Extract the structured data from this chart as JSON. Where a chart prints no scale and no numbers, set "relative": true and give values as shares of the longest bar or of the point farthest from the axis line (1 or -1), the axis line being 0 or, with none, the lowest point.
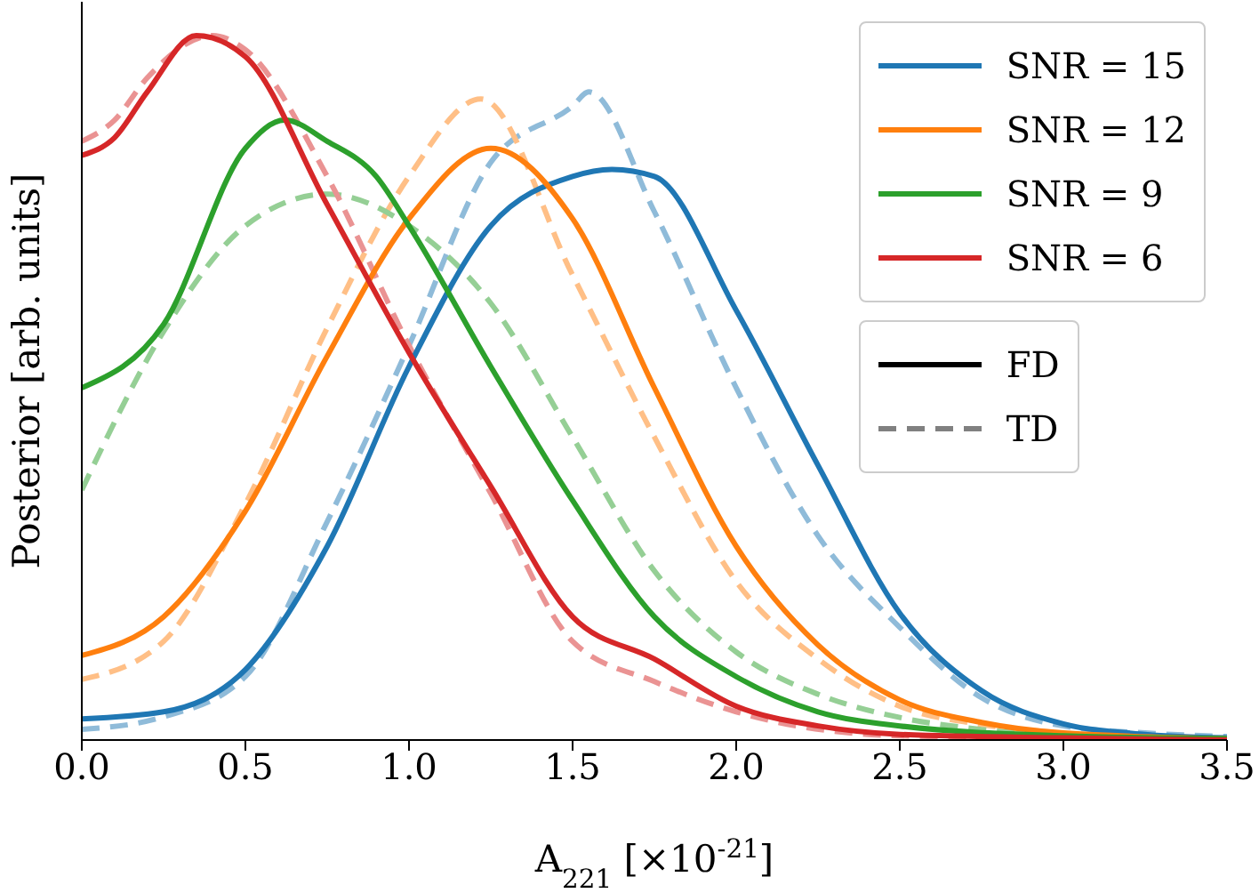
{
  "chart_data": {
    "type": "line",
    "xlabel": "A$_{221}$ [×10$^{-21}$]",
    "ylabel": "Posterior [arb. units]",
    "relative": true,
    "xlim": [
      0,
      3.5
    ],
    "xticks": [
      {
        "value": 0,
        "label": "0.0"
      },
      {
        "value": 0.5,
        "label": "0.5"
      },
      {
        "value": 1,
        "label": "1.0"
      },
      {
        "value": 1.5,
        "label": "1.5"
      },
      {
        "value": 2,
        "label": "2.0"
      },
      {
        "value": 2.5,
        "label": "2.5"
      },
      {
        "value": 3,
        "label": "3.0"
      },
      {
        "value": 3.5,
        "label": "3.5"
      }
    ],
    "legend": "top right",
    "grid": false,
    "marker": "none",
    "annotations": [
      "FD",
      "TD"
    ],
    "series": [
      {
        "name": "SNR = 15",
        "color": "#1f77b4",
        "line_style": "solid",
        "x": [
          0,
          0.25,
          0.5,
          0.75,
          1,
          1.25,
          1.5,
          1.62,
          1.75,
          2,
          2.25,
          2.5,
          2.75,
          3,
          3.25,
          3.5
        ],
        "values": [
          0.03,
          0.04,
          0.1,
          0.275,
          0.53,
          0.73,
          0.8,
          0.81,
          0.8,
          0.61,
          0.39,
          0.18,
          0.07,
          0.023,
          0.008,
          0.003
        ]
      },
      {
        "name": "SNR = 12",
        "color": "#ff7f0e",
        "line_style": "solid",
        "x": [
          0,
          0.25,
          0.5,
          0.75,
          1,
          1.25,
          1.5,
          1.75,
          2,
          2.25,
          2.5,
          2.75,
          3,
          3.5
        ],
        "values": [
          0.12,
          0.175,
          0.325,
          0.545,
          0.74,
          0.84,
          0.74,
          0.5,
          0.275,
          0.135,
          0.057,
          0.025,
          0.01,
          0.002
        ]
      },
      {
        "name": "SNR = 9",
        "color": "#2ca02c",
        "line_style": "solid",
        "x": [
          0,
          0.25,
          0.5,
          0.62,
          0.75,
          0.9,
          1,
          1.25,
          1.5,
          1.75,
          2,
          2.25,
          2.5,
          3,
          3.5
        ],
        "values": [
          0.5,
          0.59,
          0.84,
          0.88,
          0.85,
          0.8,
          0.73,
          0.53,
          0.34,
          0.175,
          0.09,
          0.04,
          0.02,
          0.006,
          0.002
        ]
      },
      {
        "name": "SNR = 6",
        "color": "#d62728",
        "line_style": "solid",
        "x": [
          0,
          0.1,
          0.2,
          0.35,
          0.5,
          0.75,
          1,
          1.25,
          1.5,
          1.75,
          2,
          2.25,
          2.5,
          3,
          3.5
        ],
        "values": [
          0.83,
          0.855,
          0.92,
          1,
          0.97,
          0.76,
          0.55,
          0.36,
          0.175,
          0.115,
          0.048,
          0.02,
          0.008,
          0.003,
          0
        ]
      },
      {
        "color": "#8fbbd9",
        "line_style": "dashed",
        "x": [
          0,
          0.25,
          0.5,
          0.75,
          1,
          1.25,
          1.5,
          1.55,
          1.75,
          2,
          2.25,
          2.5,
          2.75,
          3,
          3.25,
          3.5
        ],
        "values": [
          0.015,
          0.033,
          0.09,
          0.31,
          0.56,
          0.82,
          0.9,
          0.92,
          0.75,
          0.5,
          0.29,
          0.16,
          0.06,
          0.02,
          0.01,
          0.005
        ]
      },
      {
        "color": "#ffbf86",
        "line_style": "dashed",
        "x": [
          0,
          0.25,
          0.5,
          0.75,
          1,
          1.22,
          1.5,
          1.75,
          2,
          2.25,
          2.5,
          2.75,
          3
        ],
        "values": [
          0.086,
          0.14,
          0.335,
          0.585,
          0.8,
          0.91,
          0.66,
          0.43,
          0.225,
          0.115,
          0.048,
          0.022,
          0.01
        ]
      },
      {
        "color": "#95cf95",
        "line_style": "dashed",
        "x": [
          0,
          0.25,
          0.5,
          0.75,
          1,
          1.25,
          1.5,
          1.75,
          2,
          2.25,
          2.5,
          2.75,
          3,
          3.5
        ],
        "values": [
          0.355,
          0.58,
          0.73,
          0.775,
          0.73,
          0.62,
          0.43,
          0.24,
          0.125,
          0.065,
          0.032,
          0.015,
          0.006,
          0.002
        ]
      },
      {
        "color": "#ea9393",
        "line_style": "dashed",
        "x": [
          0,
          0.1,
          0.2,
          0.4,
          0.5,
          0.75,
          1,
          1.25,
          1.5,
          1.75,
          2,
          2.5,
          3.5
        ],
        "values": [
          0.85,
          0.88,
          0.94,
          1,
          0.98,
          0.8,
          0.56,
          0.35,
          0.14,
          0.083,
          0.04,
          0.006,
          0
        ]
      }
    ]
  }
}
